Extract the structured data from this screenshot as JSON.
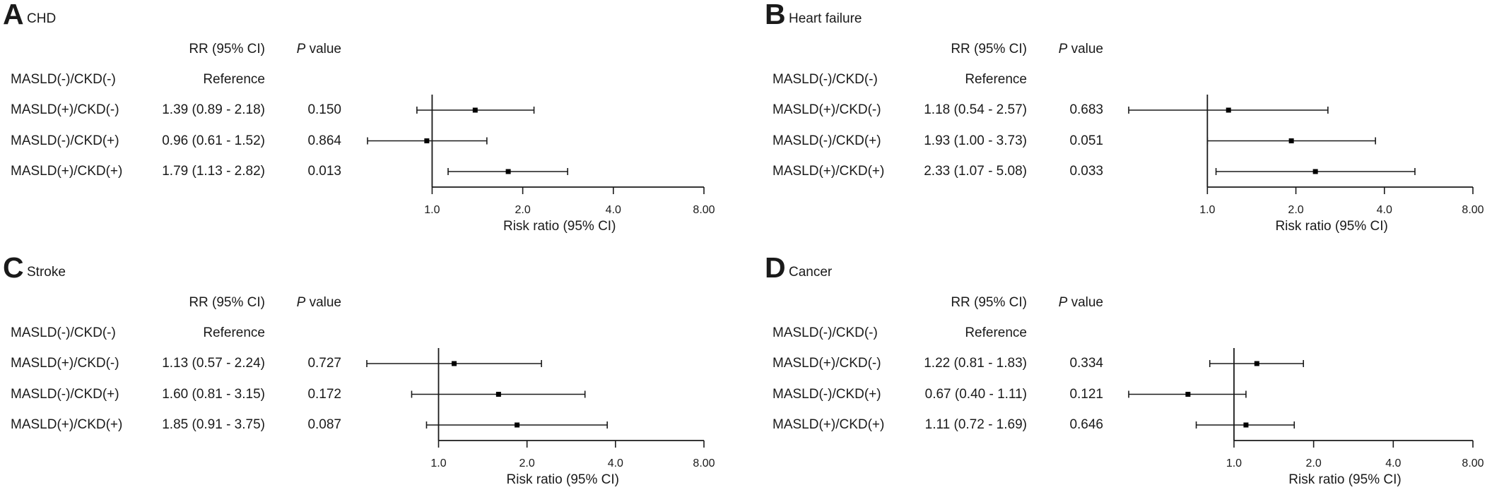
{
  "chart_data": [
    {
      "type": "forest",
      "panel": "A",
      "title": "CHD",
      "columns": {
        "rr_header": "RR (95% CI)",
        "p_header_italic": "P",
        "p_header_rest": " value"
      },
      "reference_label": "MASLD(-)/CKD(-)",
      "reference_text": "Reference",
      "rows": [
        {
          "label": "MASLD(+)/CKD(-)",
          "rr": 1.39,
          "lower": 0.89,
          "upper": 2.18,
          "rr_text": "1.39 (0.89 - 2.18)",
          "p": "0.150"
        },
        {
          "label": "MASLD(-)/CKD(+)",
          "rr": 0.96,
          "lower": 0.61,
          "upper": 1.52,
          "rr_text": "0.96 (0.61 - 1.52)",
          "p": "0.864"
        },
        {
          "label": "MASLD(+)/CKD(+)",
          "rr": 1.79,
          "lower": 1.13,
          "upper": 2.82,
          "rr_text": "1.79 (1.13 - 2.82)",
          "p": "0.013"
        }
      ],
      "xscale": "log2",
      "xticks": [
        1.0,
        2.0,
        4.0,
        8.0
      ],
      "xtick_labels": [
        "1.0",
        "2.0",
        "4.0",
        "8.00"
      ],
      "xlabel": "Risk ratio (95% CI)",
      "reference_line": 1.0
    },
    {
      "type": "forest",
      "panel": "B",
      "title": "Heart failure",
      "columns": {
        "rr_header": "RR (95% CI)",
        "p_header_italic": "P",
        "p_header_rest": " value"
      },
      "reference_label": "MASLD(-)/CKD(-)",
      "reference_text": "Reference",
      "rows": [
        {
          "label": "MASLD(+)/CKD(-)",
          "rr": 1.18,
          "lower": 0.54,
          "upper": 2.57,
          "rr_text": "1.18 (0.54 - 2.57)",
          "p": "0.683"
        },
        {
          "label": "MASLD(-)/CKD(+)",
          "rr": 1.93,
          "lower": 1.0,
          "upper": 3.73,
          "rr_text": "1.93 (1.00 - 3.73)",
          "p": "0.051"
        },
        {
          "label": "MASLD(+)/CKD(+)",
          "rr": 2.33,
          "lower": 1.07,
          "upper": 5.08,
          "rr_text": "2.33 (1.07 - 5.08)",
          "p": "0.033"
        }
      ],
      "xscale": "log2",
      "xticks": [
        1.0,
        2.0,
        4.0,
        8.0
      ],
      "xtick_labels": [
        "1.0",
        "2.0",
        "4.0",
        "8.00"
      ],
      "xlabel": "Risk ratio (95% CI)",
      "reference_line": 1.0
    },
    {
      "type": "forest",
      "panel": "C",
      "title": "Stroke",
      "columns": {
        "rr_header": "RR (95% CI)",
        "p_header_italic": "P",
        "p_header_rest": " value"
      },
      "reference_label": "MASLD(-)/CKD(-)",
      "reference_text": "Reference",
      "rows": [
        {
          "label": "MASLD(+)/CKD(-)",
          "rr": 1.13,
          "lower": 0.57,
          "upper": 2.24,
          "rr_text": "1.13 (0.57 - 2.24)",
          "p": "0.727"
        },
        {
          "label": "MASLD(-)/CKD(+)",
          "rr": 1.6,
          "lower": 0.81,
          "upper": 3.15,
          "rr_text": "1.60 (0.81 - 3.15)",
          "p": "0.172"
        },
        {
          "label": "MASLD(+)/CKD(+)",
          "rr": 1.85,
          "lower": 0.91,
          "upper": 3.75,
          "rr_text": "1.85 (0.91 - 3.75)",
          "p": "0.087"
        }
      ],
      "xscale": "log2",
      "xticks": [
        1.0,
        2.0,
        4.0,
        8.0
      ],
      "xtick_labels": [
        "1.0",
        "2.0",
        "4.0",
        "8.00"
      ],
      "xlabel": "Risk ratio (95% CI)",
      "reference_line": 1.0
    },
    {
      "type": "forest",
      "panel": "D",
      "title": "Cancer",
      "columns": {
        "rr_header": "RR (95% CI)",
        "p_header_italic": "P",
        "p_header_rest": " value"
      },
      "reference_label": "MASLD(-)/CKD(-)",
      "reference_text": "Reference",
      "rows": [
        {
          "label": "MASLD(+)/CKD(-)",
          "rr": 1.22,
          "lower": 0.81,
          "upper": 1.83,
          "rr_text": "1.22 (0.81 - 1.83)",
          "p": "0.334"
        },
        {
          "label": "MASLD(-)/CKD(+)",
          "rr": 0.67,
          "lower": 0.4,
          "upper": 1.11,
          "rr_text": "0.67 (0.40 - 1.11)",
          "p": "0.121"
        },
        {
          "label": "MASLD(+)/CKD(+)",
          "rr": 1.11,
          "lower": 0.72,
          "upper": 1.69,
          "rr_text": "1.11 (0.72 - 1.69)",
          "p": "0.646"
        }
      ],
      "xscale": "log2",
      "xticks": [
        1.0,
        2.0,
        4.0,
        8.0
      ],
      "xtick_labels": [
        "1.0",
        "2.0",
        "4.0",
        "8.00"
      ],
      "xlabel": "Risk ratio (95% CI)",
      "reference_line": 1.0
    }
  ]
}
